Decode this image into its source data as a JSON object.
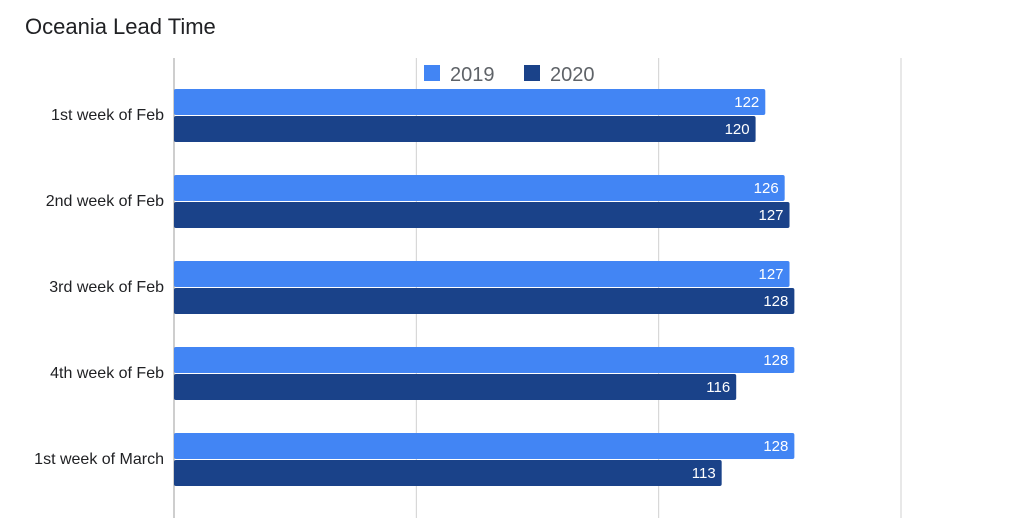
{
  "chart_data": {
    "type": "bar",
    "orientation": "horizontal",
    "title": "Oceania Lead Time",
    "xlabel": "",
    "ylabel": "",
    "categories": [
      "1st week of Feb",
      "2nd week of Feb",
      "3rd week of Feb",
      "4th week of Feb",
      "1st week of March"
    ],
    "series": [
      {
        "name": "2019",
        "values": [
          122,
          126,
          127,
          128,
          128
        ],
        "color": "#4285f4"
      },
      {
        "name": "2020",
        "values": [
          120,
          127,
          128,
          116,
          113
        ],
        "color": "#1a4289"
      }
    ],
    "xlim": [
      0,
      150
    ],
    "grid": true,
    "gridline_ticks": [
      0,
      50,
      100,
      150
    ],
    "tick_labels_visible": false,
    "legend_position": "top-center",
    "data_labels": true
  }
}
